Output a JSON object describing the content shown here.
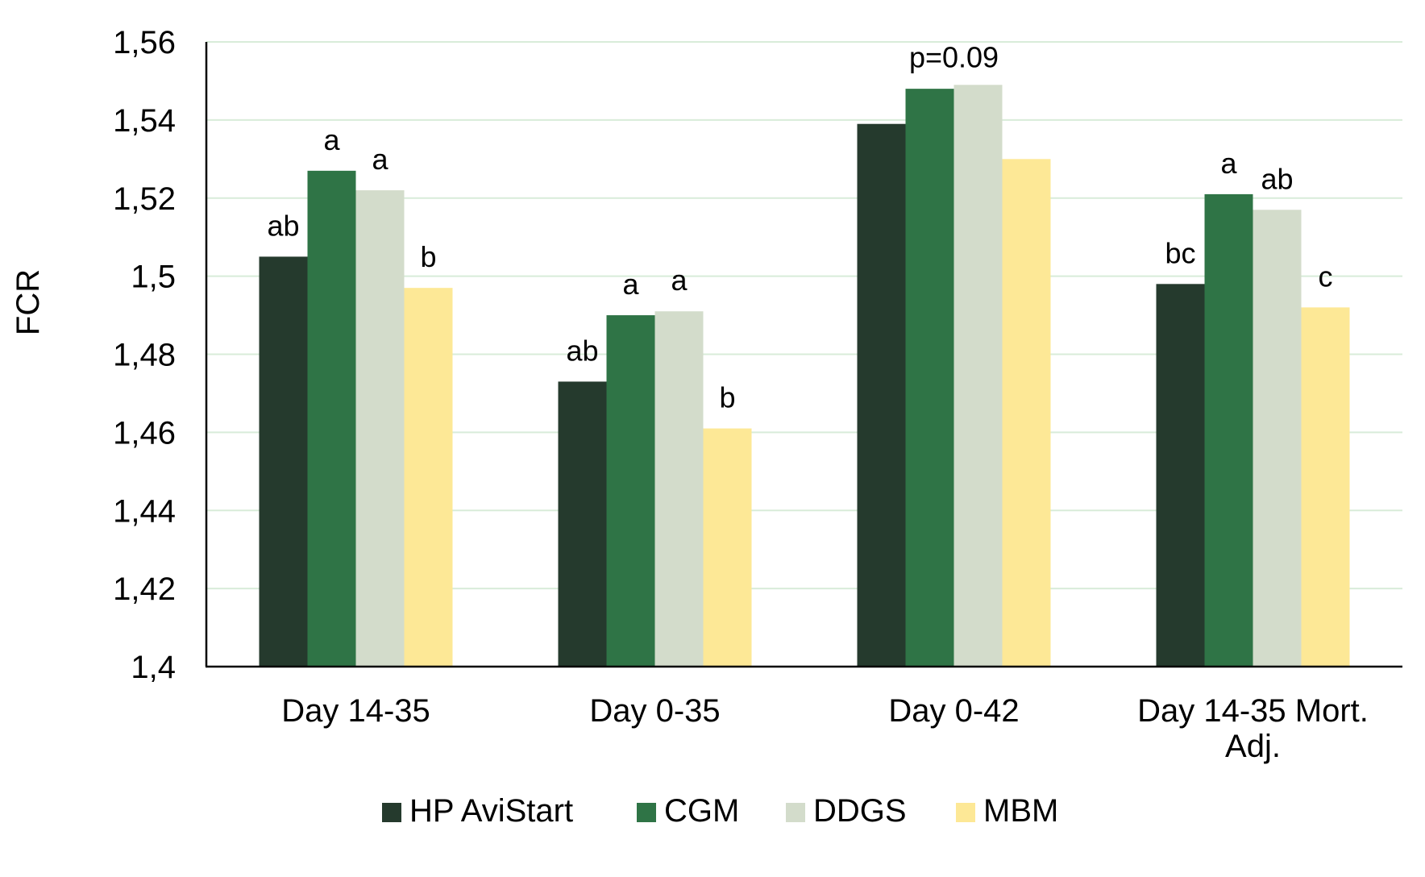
{
  "chart_data": {
    "type": "bar",
    "ylabel": "FCR",
    "xlabel": "",
    "ylim": [
      1.4,
      1.56
    ],
    "ytick_step": 0.02,
    "yticks": [
      "1,4",
      "1,42",
      "1,44",
      "1,46",
      "1,48",
      "1,5",
      "1,52",
      "1,54",
      "1,56"
    ],
    "grid": true,
    "legend_position": "bottom",
    "categories": [
      [
        "Day 14-35"
      ],
      [
        "Day 0-35"
      ],
      [
        "Day 0-42"
      ],
      [
        "Day 14-35 Mort.",
        "Adj."
      ]
    ],
    "series": [
      {
        "name": "HP AviStart",
        "color": "#253a2d",
        "values": [
          1.505,
          1.473,
          1.539,
          1.498
        ]
      },
      {
        "name": "CGM",
        "color": "#2f7446",
        "values": [
          1.527,
          1.49,
          1.548,
          1.521
        ]
      },
      {
        "name": "DDGS",
        "color": "#d3dccb",
        "values": [
          1.522,
          1.491,
          1.549,
          1.517
        ]
      },
      {
        "name": "MBM",
        "color": "#fde896",
        "values": [
          1.497,
          1.461,
          1.53,
          1.492
        ]
      }
    ],
    "significance_letters": [
      [
        "ab",
        "a",
        "a",
        "b"
      ],
      [
        "ab",
        "a",
        "a",
        "b"
      ],
      [
        "",
        "",
        "",
        ""
      ],
      [
        "bc",
        "a",
        "ab",
        "c"
      ]
    ],
    "group_annotations": [
      "",
      "",
      "p=0.09",
      ""
    ],
    "colors": {
      "grid": "#d8ecd9",
      "axis": "#000000"
    }
  }
}
